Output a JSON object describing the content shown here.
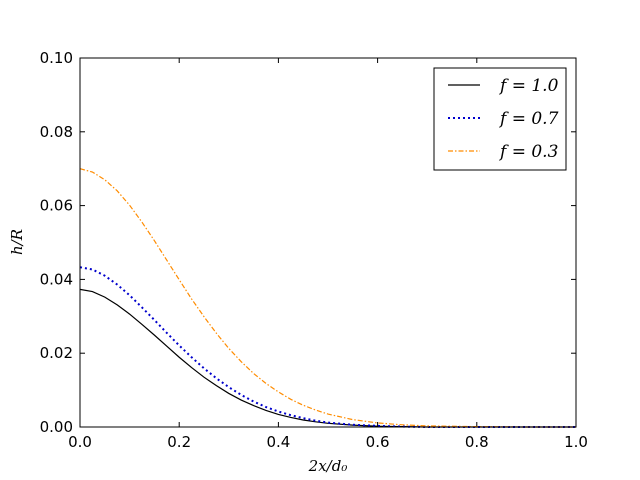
{
  "chart_data": {
    "type": "line",
    "title": "",
    "xlabel": "2x/d₀",
    "ylabel": "h/R",
    "xlim": [
      0.0,
      1.0
    ],
    "ylim": [
      0.0,
      0.1
    ],
    "x_ticks": [
      "0.0",
      "0.2",
      "0.4",
      "0.6",
      "0.8",
      "1.0"
    ],
    "y_ticks": [
      "0.00",
      "0.02",
      "0.04",
      "0.06",
      "0.08",
      "0.10"
    ],
    "grid": false,
    "legend_position": "top-right",
    "x": [
      0.0,
      0.025,
      0.05,
      0.075,
      0.1,
      0.125,
      0.15,
      0.175,
      0.2,
      0.225,
      0.25,
      0.275,
      0.3,
      0.325,
      0.35,
      0.375,
      0.4,
      0.425,
      0.45,
      0.475,
      0.5,
      0.55,
      0.6,
      0.65,
      0.7,
      0.8,
      0.9,
      1.0
    ],
    "series": [
      {
        "name": "f = 1.0",
        "color": "#000000",
        "style": "solid",
        "values": [
          0.0373,
          0.0367,
          0.0352,
          0.0331,
          0.0306,
          0.0278,
          0.0249,
          0.0219,
          0.0189,
          0.0161,
          0.0135,
          0.0112,
          0.0091,
          0.0073,
          0.0058,
          0.0045,
          0.0034,
          0.0026,
          0.0019,
          0.0014,
          0.001,
          0.0005,
          0.0002,
          0.0001,
          0.0,
          0.0,
          0.0,
          0.0
        ]
      },
      {
        "name": "f = 0.7",
        "color": "#0000cc",
        "style": "dotted",
        "values": [
          0.0433,
          0.0427,
          0.041,
          0.0386,
          0.0357,
          0.0324,
          0.029,
          0.0255,
          0.0221,
          0.0189,
          0.0159,
          0.0132,
          0.0108,
          0.0087,
          0.0069,
          0.0054,
          0.0042,
          0.0032,
          0.0024,
          0.0017,
          0.0012,
          0.0006,
          0.0003,
          0.0001,
          0.0,
          0.0,
          0.0,
          0.0
        ]
      },
      {
        "name": "f = 0.3",
        "color": "#ff8c00",
        "style": "dashdot",
        "values": [
          0.07,
          0.0691,
          0.067,
          0.064,
          0.0601,
          0.0555,
          0.0505,
          0.0452,
          0.0399,
          0.0347,
          0.0299,
          0.0254,
          0.0213,
          0.0177,
          0.0145,
          0.0118,
          0.0095,
          0.0075,
          0.0059,
          0.0046,
          0.0035,
          0.002,
          0.0011,
          0.0006,
          0.0003,
          0.0001,
          0.0,
          0.0
        ]
      }
    ]
  }
}
